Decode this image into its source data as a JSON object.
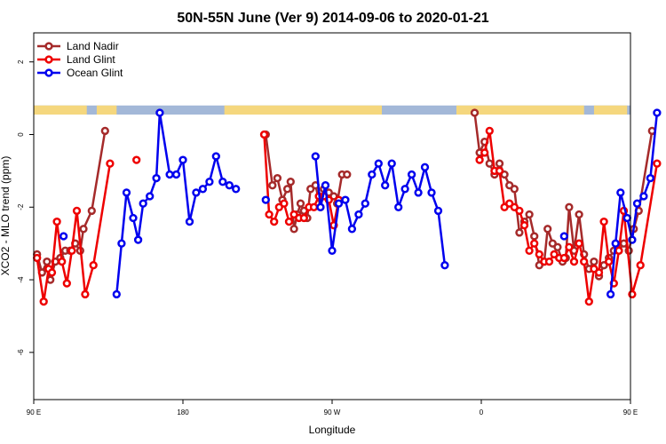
{
  "chart_data": {
    "type": "line",
    "title": "50N-55N June (Ver 9)   2014-09-06 to 2020-01-21",
    "xlabel": "Longitude",
    "ylabel": "XCO2 - MLO trend (ppm)",
    "xlim": [
      90,
      450
    ],
    "ylim": [
      -7.3,
      2.8
    ],
    "x_ticks": [
      {
        "value": 90,
        "label": "90 E"
      },
      {
        "value": 180,
        "label": "180"
      },
      {
        "value": 270,
        "label": "90 W"
      },
      {
        "value": 360,
        "label": "0"
      },
      {
        "value": 450,
        "label": "90 E"
      },
      {
        "value": 540,
        "label": "180"
      }
    ],
    "y_ticks": [
      {
        "value": 2,
        "label": "2"
      },
      {
        "value": 0,
        "label": "0"
      },
      {
        "value": -2,
        "label": "-2"
      },
      {
        "value": -4,
        "label": "-4"
      },
      {
        "value": -6,
        "label": "-6"
      }
    ],
    "grid": false,
    "legend_position": "top-left",
    "background_band": {
      "y_top": 0.8,
      "y_bottom": 0.55,
      "ocean_color": "#a3b8d8",
      "land_color": "#f5d77e"
    },
    "series": [
      {
        "name": "Land Nadir",
        "color": "#a52a2a",
        "points": [
          [
            92,
            -3.3
          ],
          [
            95,
            -3.8
          ],
          [
            98,
            -3.5
          ],
          [
            100,
            -4.0
          ],
          [
            103,
            -3.5
          ],
          [
            106,
            -3.4
          ],
          [
            109,
            -3.2
          ],
          [
            112,
            -3.2
          ],
          [
            115,
            -3.0
          ],
          [
            118,
            -3.2
          ],
          [
            120,
            -2.6
          ],
          [
            125,
            -2.1
          ],
          [
            133,
            0.1
          ],
          null,
          [
            230,
            0.0
          ],
          [
            234,
            -1.4
          ],
          [
            237,
            -1.2
          ],
          [
            240,
            -1.8
          ],
          [
            243,
            -1.5
          ],
          [
            245,
            -1.3
          ],
          [
            247,
            -2.6
          ],
          [
            249,
            -2.2
          ],
          [
            251,
            -1.9
          ],
          [
            253,
            -2.1
          ],
          [
            255,
            -2.3
          ],
          [
            257,
            -1.5
          ],
          [
            260,
            -1.4
          ],
          [
            263,
            -2.0
          ],
          [
            265,
            -1.5
          ],
          [
            268,
            -1.6
          ],
          [
            271,
            -1.7
          ],
          [
            273,
            -1.9
          ],
          [
            276,
            -1.1
          ],
          [
            279,
            -1.1
          ],
          null,
          [
            356,
            0.6
          ],
          [
            359,
            -0.5
          ],
          [
            362,
            -0.2
          ],
          [
            365,
            -0.8
          ],
          [
            368,
            -1.1
          ],
          [
            371,
            -0.8
          ],
          [
            374,
            -1.1
          ],
          [
            377,
            -1.4
          ],
          [
            380,
            -1.5
          ],
          [
            383,
            -2.7
          ],
          [
            386,
            -2.4
          ],
          [
            389,
            -2.2
          ],
          [
            392,
            -2.8
          ],
          [
            395,
            -3.6
          ],
          [
            398,
            -3.5
          ],
          [
            400,
            -2.6
          ],
          [
            403,
            -3.0
          ],
          [
            406,
            -3.1
          ],
          [
            409,
            -3.5
          ],
          [
            411,
            -3.4
          ],
          [
            413,
            -2.0
          ],
          [
            416,
            -3.2
          ],
          [
            419,
            -2.2
          ],
          [
            422,
            -3.3
          ],
          [
            425,
            -3.7
          ],
          [
            428,
            -3.5
          ],
          [
            431,
            -3.9
          ],
          [
            434,
            -3.6
          ],
          [
            437,
            -3.4
          ],
          [
            440,
            -3.2
          ],
          [
            443,
            -3.2
          ],
          [
            446,
            -3.0
          ],
          [
            449,
            -3.2
          ],
          [
            452,
            -2.6
          ],
          [
            455,
            -2.1
          ],
          [
            463,
            0.1
          ]
        ]
      },
      {
        "name": "Land Glint",
        "color": "#ee0000",
        "points": [
          [
            92,
            -3.4
          ],
          [
            96,
            -4.6
          ],
          [
            99,
            -3.7
          ],
          [
            101,
            -3.8
          ],
          [
            104,
            -2.4
          ],
          [
            107,
            -3.5
          ],
          [
            110,
            -4.1
          ],
          [
            113,
            -3.2
          ],
          [
            116,
            -2.1
          ],
          [
            121,
            -4.4
          ],
          [
            126,
            -3.6
          ],
          [
            136,
            -0.8
          ],
          null,
          [
            152,
            -0.7
          ],
          null,
          [
            229,
            0.0
          ],
          [
            232,
            -2.2
          ],
          [
            235,
            -2.4
          ],
          [
            238,
            -2.0
          ],
          [
            241,
            -1.9
          ],
          [
            244,
            -2.4
          ],
          [
            247,
            -2.2
          ],
          [
            250,
            -2.3
          ],
          [
            253,
            -2.3
          ],
          [
            256,
            -2.0
          ],
          [
            259,
            -2.0
          ],
          [
            262,
            -1.7
          ],
          [
            265,
            -1.7
          ],
          [
            268,
            -1.8
          ],
          [
            271,
            -2.5
          ],
          [
            274,
            -1.8
          ],
          null,
          [
            359,
            -0.7
          ],
          [
            362,
            -0.5
          ],
          [
            365,
            0.1
          ],
          [
            368,
            -1.0
          ],
          [
            371,
            -1.0
          ],
          [
            374,
            -2.0
          ],
          [
            377,
            -1.9
          ],
          [
            380,
            -2.0
          ],
          [
            383,
            -2.1
          ],
          [
            386,
            -2.5
          ],
          [
            389,
            -3.2
          ],
          [
            392,
            -3.0
          ],
          [
            395,
            -3.3
          ],
          [
            398,
            -3.5
          ],
          [
            401,
            -3.5
          ],
          [
            404,
            -3.3
          ],
          [
            407,
            -3.4
          ],
          [
            410,
            -3.4
          ],
          [
            413,
            -3.1
          ],
          [
            416,
            -3.5
          ],
          [
            419,
            -3.0
          ],
          [
            422,
            -3.5
          ],
          [
            425,
            -4.6
          ],
          [
            428,
            -3.7
          ],
          [
            431,
            -3.8
          ],
          [
            434,
            -2.4
          ],
          [
            437,
            -3.5
          ],
          [
            440,
            -4.1
          ],
          [
            443,
            -3.2
          ],
          [
            446,
            -2.1
          ],
          [
            451,
            -4.4
          ],
          [
            456,
            -3.6
          ],
          [
            466,
            -0.8
          ]
        ]
      },
      {
        "name": "Ocean Glint",
        "color": "#0000ee",
        "points": [
          [
            108,
            -2.8
          ],
          null,
          [
            140,
            -4.4
          ],
          [
            143,
            -3.0
          ],
          [
            146,
            -1.6
          ],
          [
            150,
            -2.3
          ],
          [
            153,
            -2.9
          ],
          [
            156,
            -1.9
          ],
          [
            160,
            -1.7
          ],
          [
            164,
            -1.2
          ],
          [
            166,
            0.6
          ],
          [
            172,
            -1.1
          ],
          [
            176,
            -1.1
          ],
          [
            180,
            -0.7
          ],
          [
            184,
            -2.4
          ],
          [
            188,
            -1.6
          ],
          [
            192,
            -1.5
          ],
          [
            196,
            -1.3
          ],
          [
            200,
            -0.6
          ],
          [
            204,
            -1.3
          ],
          [
            208,
            -1.4
          ],
          [
            212,
            -1.5
          ],
          null,
          [
            230,
            -1.8
          ],
          null,
          [
            260,
            -0.6
          ],
          [
            263,
            -2.0
          ],
          [
            266,
            -1.4
          ],
          [
            270,
            -3.2
          ],
          [
            274,
            -1.9
          ],
          [
            278,
            -1.8
          ],
          [
            282,
            -2.6
          ],
          [
            286,
            -2.2
          ],
          [
            290,
            -1.9
          ],
          [
            294,
            -1.1
          ],
          [
            298,
            -0.8
          ],
          [
            302,
            -1.4
          ],
          [
            306,
            -0.8
          ],
          [
            310,
            -2.0
          ],
          [
            314,
            -1.5
          ],
          [
            318,
            -1.1
          ],
          [
            322,
            -1.6
          ],
          [
            326,
            -0.9
          ],
          [
            330,
            -1.6
          ],
          [
            334,
            -2.1
          ],
          [
            338,
            -3.6
          ],
          null,
          [
            410,
            -2.8
          ],
          null,
          [
            438,
            -4.4
          ],
          [
            441,
            -3.0
          ],
          [
            444,
            -1.6
          ],
          [
            448,
            -2.3
          ],
          [
            451,
            -2.9
          ],
          [
            454,
            -1.9
          ],
          [
            458,
            -1.7
          ],
          [
            462,
            -1.2
          ],
          [
            466,
            0.6
          ]
        ]
      }
    ]
  }
}
